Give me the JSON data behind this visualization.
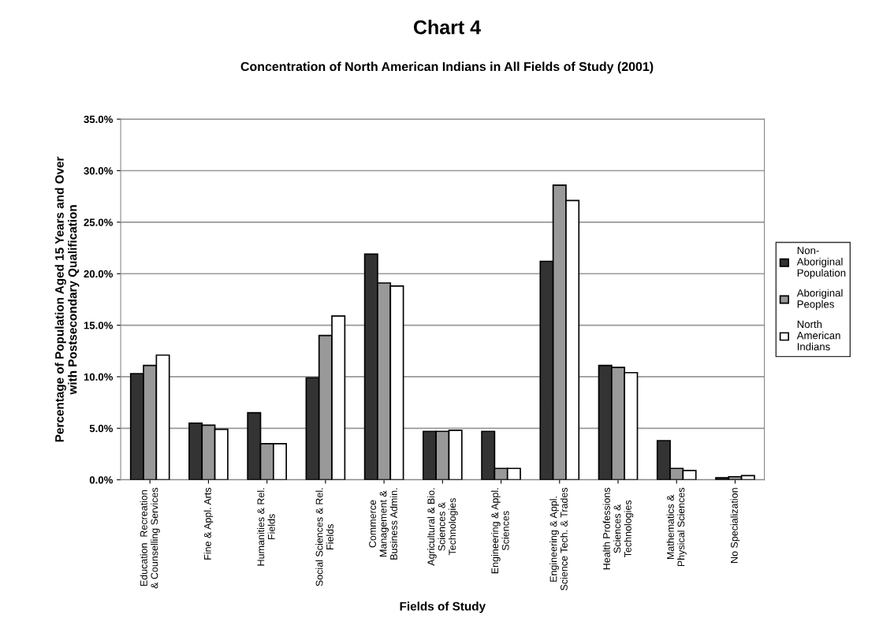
{
  "chart_data": {
    "type": "bar",
    "title": "Chart 4",
    "subtitle": "Concentration of North American Indians in All Fields of Study (2001)",
    "xlabel": "Fields of Study",
    "ylabel": "Percentage of Population Aged 15 Years and Over\nwith Postsecondary Qualification",
    "categories": [
      "Education  Recreation\n& Counselling Services",
      "Fine & Appl. Arts",
      "Humanities & Rel.\nFields",
      "Social Sciences & Rel.\nFields",
      "Commerce\nManagement &\nBusiness Admin.",
      "Agricultural & Bio.\nSciences &\nTechnologies",
      "Engineering & Appl.\nSciences",
      "Engineering & Appl.\nScience Tech. & Trades",
      "Health Professions\nSciences &\nTechnologies",
      "Mathematics &\nPhysical Sciences",
      "No Specialization"
    ],
    "series": [
      {
        "name": "Non-\nAboriginal\nPopulation",
        "color": "#333333",
        "values": [
          10.3,
          5.5,
          6.5,
          9.9,
          21.9,
          4.7,
          4.7,
          21.2,
          11.1,
          3.8,
          0.2
        ]
      },
      {
        "name": "Aboriginal\nPeoples",
        "color": "#999999",
        "values": [
          11.1,
          5.3,
          3.5,
          14.0,
          19.1,
          4.7,
          1.1,
          28.6,
          10.9,
          1.1,
          0.3
        ]
      },
      {
        "name": "North\nAmerican\nIndians",
        "color": "#ffffff",
        "values": [
          12.1,
          4.9,
          3.5,
          15.9,
          18.8,
          4.8,
          1.1,
          27.1,
          10.4,
          0.9,
          0.4
        ]
      }
    ],
    "ylim": [
      0,
      35
    ],
    "yticks": [
      {
        "value": 0,
        "label": "0.0%"
      },
      {
        "value": 5,
        "label": "5.0%"
      },
      {
        "value": 10,
        "label": "10.0%"
      },
      {
        "value": 15,
        "label": "15.0%"
      },
      {
        "value": 20,
        "label": "20.0%"
      },
      {
        "value": 25,
        "label": "25.0%"
      },
      {
        "value": 30,
        "label": "30.0%"
      },
      {
        "value": 35,
        "label": "35.0%"
      }
    ],
    "grid": "y",
    "legend": "right"
  }
}
